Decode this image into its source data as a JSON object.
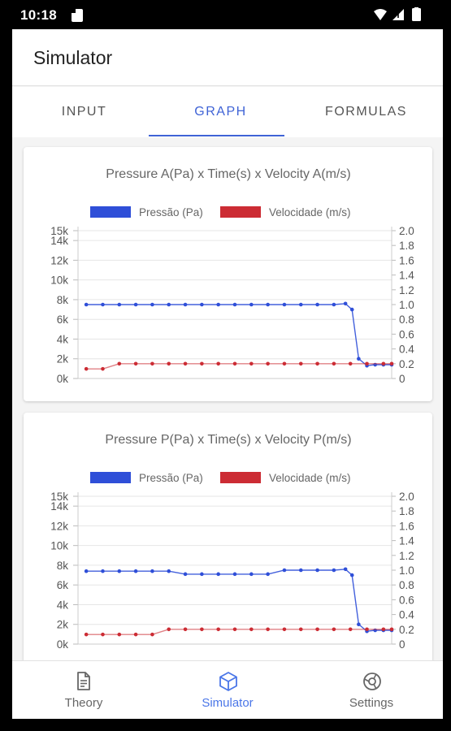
{
  "status_bar": {
    "time": "10:18"
  },
  "app_bar": {
    "title": "Simulator"
  },
  "tabs": [
    {
      "label": "INPUT",
      "active": false
    },
    {
      "label": "GRAPH",
      "active": true
    },
    {
      "label": "FORMULAS",
      "active": false
    }
  ],
  "colors": {
    "accent": "#3f63d6",
    "pressure": "#2f4fd8",
    "velocity": "#cc2c34",
    "grid": "#e6e6e6"
  },
  "chart_data": [
    {
      "type": "line",
      "title": "Pressure A(Pa) x Time(s) x Velocity A(m/s)",
      "legend_position": "top",
      "grid": true,
      "y_left": {
        "ticks": [
          "0k",
          "2k",
          "4k",
          "6k",
          "8k",
          "10k",
          "12k",
          "14k",
          "15k"
        ],
        "range": [
          0,
          15000
        ]
      },
      "y_right": {
        "ticks": [
          "0",
          "0.2",
          "0.4",
          "0.6",
          "0.8",
          "1.0",
          "1.2",
          "1.4",
          "1.6",
          "1.8",
          "2.0"
        ],
        "range": [
          0,
          2.0
        ]
      },
      "x_range": [
        0,
        19
      ],
      "series": [
        {
          "name": "Pressão (Pa)",
          "axis": "left",
          "color": "#2f4fd8",
          "points": [
            [
              0.5,
              7500
            ],
            [
              1.5,
              7500
            ],
            [
              2.5,
              7500
            ],
            [
              3.5,
              7500
            ],
            [
              4.5,
              7500
            ],
            [
              5.5,
              7500
            ],
            [
              6.5,
              7500
            ],
            [
              7.5,
              7500
            ],
            [
              8.5,
              7500
            ],
            [
              9.5,
              7500
            ],
            [
              10.5,
              7500
            ],
            [
              11.5,
              7500
            ],
            [
              12.5,
              7500
            ],
            [
              13.5,
              7500
            ],
            [
              14.5,
              7500
            ],
            [
              15.5,
              7500
            ],
            [
              16.2,
              7600
            ],
            [
              16.6,
              7000
            ],
            [
              17.0,
              2000
            ],
            [
              17.5,
              1300
            ],
            [
              18.0,
              1400
            ],
            [
              18.5,
              1400
            ],
            [
              19.0,
              1400
            ]
          ]
        },
        {
          "name": "Velocidade (m/s)",
          "axis": "right",
          "color": "#cc2c34",
          "points": [
            [
              0.5,
              0.13
            ],
            [
              1.5,
              0.13
            ],
            [
              2.5,
              0.2
            ],
            [
              3.5,
              0.2
            ],
            [
              4.5,
              0.2
            ],
            [
              5.5,
              0.2
            ],
            [
              6.5,
              0.2
            ],
            [
              7.5,
              0.2
            ],
            [
              8.5,
              0.2
            ],
            [
              9.5,
              0.2
            ],
            [
              10.5,
              0.2
            ],
            [
              11.5,
              0.2
            ],
            [
              12.5,
              0.2
            ],
            [
              13.5,
              0.2
            ],
            [
              14.5,
              0.2
            ],
            [
              15.5,
              0.2
            ],
            [
              16.5,
              0.2
            ],
            [
              17.5,
              0.2
            ],
            [
              18.5,
              0.2
            ],
            [
              19.0,
              0.2
            ]
          ]
        }
      ]
    },
    {
      "type": "line",
      "title": "Pressure P(Pa) x Time(s) x Velocity P(m/s)",
      "legend_position": "top",
      "grid": true,
      "y_left": {
        "ticks": [
          "0k",
          "2k",
          "4k",
          "6k",
          "8k",
          "10k",
          "12k",
          "14k",
          "15k"
        ],
        "range": [
          0,
          15000
        ]
      },
      "y_right": {
        "ticks": [
          "0",
          "0.2",
          "0.4",
          "0.6",
          "0.8",
          "1.0",
          "1.2",
          "1.4",
          "1.6",
          "1.8",
          "2.0"
        ],
        "range": [
          0,
          2.0
        ]
      },
      "x_range": [
        0,
        19
      ],
      "series": [
        {
          "name": "Pressão (Pa)",
          "axis": "left",
          "color": "#2f4fd8",
          "points": [
            [
              0.5,
              7400
            ],
            [
              1.5,
              7400
            ],
            [
              2.5,
              7400
            ],
            [
              3.5,
              7400
            ],
            [
              4.5,
              7400
            ],
            [
              5.5,
              7400
            ],
            [
              6.5,
              7100
            ],
            [
              7.5,
              7100
            ],
            [
              8.5,
              7100
            ],
            [
              9.5,
              7100
            ],
            [
              10.5,
              7100
            ],
            [
              11.5,
              7100
            ],
            [
              12.5,
              7500
            ],
            [
              13.5,
              7500
            ],
            [
              14.5,
              7500
            ],
            [
              15.5,
              7500
            ],
            [
              16.2,
              7600
            ],
            [
              16.6,
              7000
            ],
            [
              17.0,
              2000
            ],
            [
              17.5,
              1300
            ],
            [
              18.0,
              1400
            ],
            [
              18.5,
              1400
            ],
            [
              19.0,
              1400
            ]
          ]
        },
        {
          "name": "Velocidade (m/s)",
          "axis": "right",
          "color": "#cc2c34",
          "points": [
            [
              0.5,
              0.13
            ],
            [
              1.5,
              0.13
            ],
            [
              2.5,
              0.13
            ],
            [
              3.5,
              0.13
            ],
            [
              4.5,
              0.13
            ],
            [
              5.5,
              0.2
            ],
            [
              6.5,
              0.2
            ],
            [
              7.5,
              0.2
            ],
            [
              8.5,
              0.2
            ],
            [
              9.5,
              0.2
            ],
            [
              10.5,
              0.2
            ],
            [
              11.5,
              0.2
            ],
            [
              12.5,
              0.2
            ],
            [
              13.5,
              0.2
            ],
            [
              14.5,
              0.2
            ],
            [
              15.5,
              0.2
            ],
            [
              16.5,
              0.2
            ],
            [
              17.5,
              0.2
            ],
            [
              18.5,
              0.2
            ],
            [
              19.0,
              0.2
            ]
          ]
        }
      ]
    }
  ],
  "bottom_nav": [
    {
      "label": "Theory",
      "icon": "document-icon",
      "active": false
    },
    {
      "label": "Simulator",
      "icon": "cube-icon",
      "active": true
    },
    {
      "label": "Settings",
      "icon": "settings-icon",
      "active": false
    }
  ]
}
